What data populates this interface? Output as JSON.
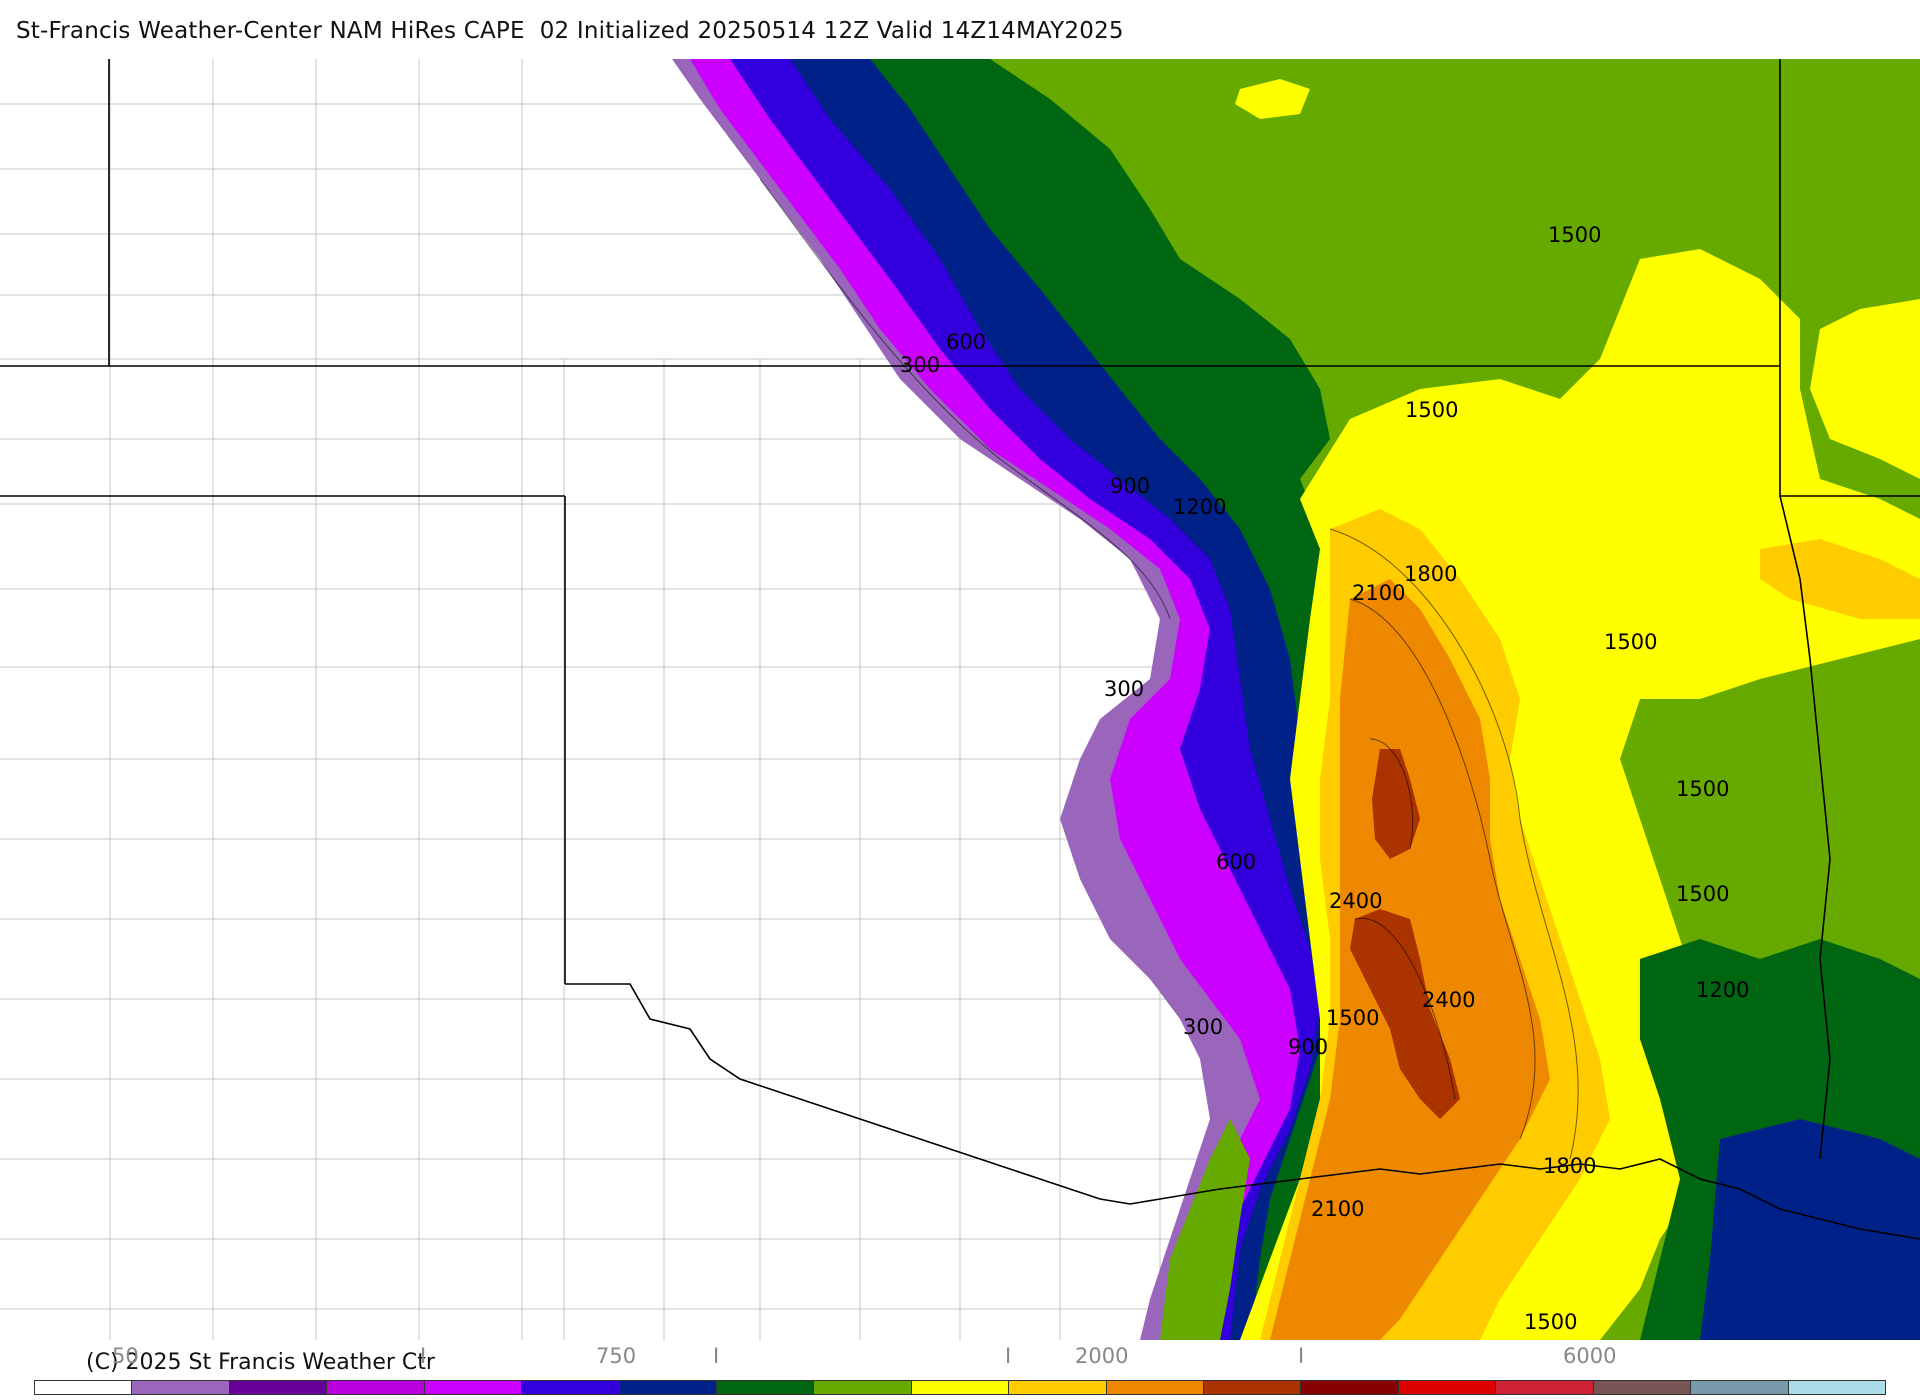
{
  "header": {
    "title": "St-Francis Weather-Center NAM HiRes CAPE  02 Initialized 20250514 12Z Valid 14Z14MAY2025"
  },
  "footer": {
    "copyright": "(C) 2025 St Francis Weather Ctr"
  },
  "colorbar": {
    "labels": [
      "50",
      "I",
      "750",
      "I",
      "I",
      "2000",
      "I",
      "6000"
    ],
    "colors": [
      "#ffffff",
      "#9966bb",
      "#660099",
      "#bb00dd",
      "#cc00ff",
      "#3300dd",
      "#002288",
      "#006611",
      "#66aa00",
      "#ffff00",
      "#ffcc00",
      "#ee8800",
      "#aa3300",
      "#880000",
      "#dd0000",
      "#cc2233",
      "#775555",
      "#7799aa",
      "#aadde8"
    ]
  },
  "map": {
    "contour_labels": [
      "600",
      "300",
      "900",
      "1200",
      "1500",
      "1500",
      "1800",
      "2100",
      "1500",
      "300",
      "1500",
      "600",
      "2400",
      "1500",
      "1200",
      "2400",
      "1500",
      "300",
      "900",
      "1800",
      "2100",
      "1500"
    ],
    "colors": {
      "background": "#ffffff",
      "lavender": "#9966bb",
      "purple": "#660099",
      "magenta": "#cc00ff",
      "violet": "#3300dd",
      "navy": "#002288",
      "dark_green": "#006611",
      "green": "#66aa00",
      "yellow": "#ffff00",
      "gold": "#ffcc00",
      "orange": "#ee8800",
      "brown": "#aa3300",
      "state_border": "#000000",
      "county_line": "#bbbbbb"
    }
  }
}
